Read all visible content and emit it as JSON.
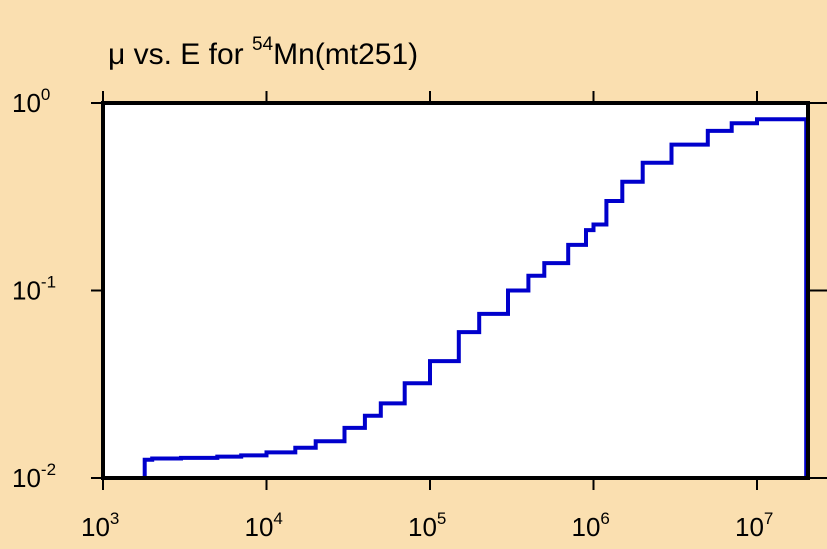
{
  "chart_data": {
    "type": "line",
    "title": {
      "prefix": "μ vs. E for ",
      "superscript": "54",
      "suffix": "Mn(mt251)"
    },
    "xlabel": "",
    "ylabel": "",
    "x_scale": "log",
    "y_scale": "log",
    "xlim": [
      1000,
      20000000
    ],
    "ylim": [
      0.01,
      1
    ],
    "x_ticks": [
      {
        "value": 1000,
        "base": "10",
        "exp": "3"
      },
      {
        "value": 10000,
        "base": "10",
        "exp": "4"
      },
      {
        "value": 100000,
        "base": "10",
        "exp": "5"
      },
      {
        "value": 1000000,
        "base": "10",
        "exp": "6"
      },
      {
        "value": 10000000,
        "base": "10",
        "exp": "7"
      }
    ],
    "y_ticks": [
      {
        "value": 0.01,
        "base": "10",
        "exp": "-2"
      },
      {
        "value": 0.1,
        "base": "10",
        "exp": "-1"
      },
      {
        "value": 1,
        "base": "10",
        "exp": "0"
      }
    ],
    "grid": false,
    "line_style": "step",
    "series": [
      {
        "color": "#0000cc",
        "x": [
          1800,
          2000,
          3000,
          5000,
          7000,
          10000,
          15000,
          20000,
          30000,
          40000,
          50000,
          70000,
          100000,
          150000,
          200000,
          300000,
          400000,
          500000,
          700000,
          900000,
          1000000,
          1200000,
          1500000,
          2000000,
          3000000,
          5000000,
          7000000,
          10000000,
          14000000,
          20000000
        ],
        "y": [
          0.0125,
          0.0127,
          0.0128,
          0.013,
          0.0132,
          0.0137,
          0.0145,
          0.0157,
          0.0185,
          0.0215,
          0.025,
          0.032,
          0.042,
          0.06,
          0.075,
          0.1,
          0.12,
          0.14,
          0.175,
          0.21,
          0.225,
          0.3,
          0.38,
          0.48,
          0.6,
          0.71,
          0.78,
          0.82,
          0.82,
          0.8
        ]
      }
    ]
  }
}
